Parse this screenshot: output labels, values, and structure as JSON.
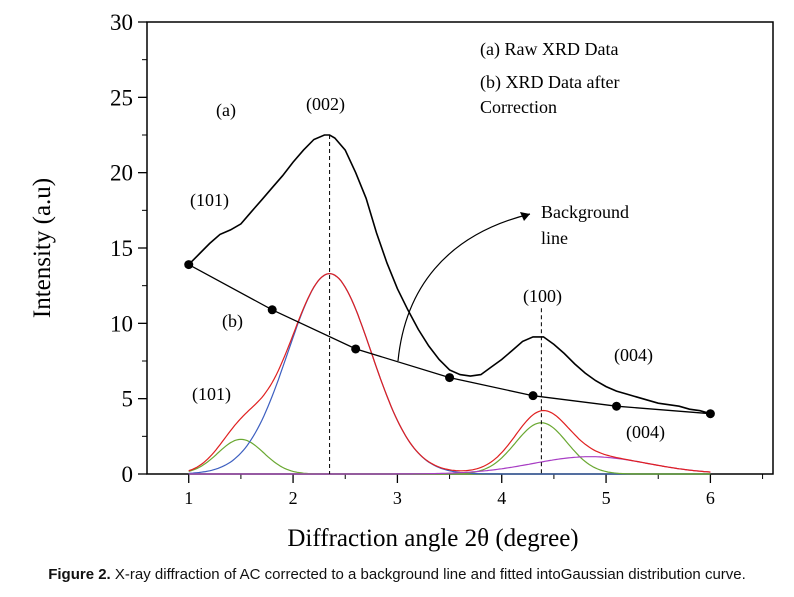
{
  "chart_data": {
    "type": "line",
    "xlabel": "Diffraction angle 2θ (degree)",
    "ylabel": "Intensity (a.u)",
    "xlim": [
      0.6,
      6.6
    ],
    "ylim": [
      0,
      30
    ],
    "x_ticks": [
      1,
      2,
      3,
      4,
      5,
      6
    ],
    "y_ticks": [
      0,
      5,
      10,
      15,
      20,
      25,
      30
    ],
    "legend": [
      "(a)  Raw XRD Data",
      "(b)   XRD Data after",
      "Correction"
    ],
    "raw_curve": {
      "name": "(a) Raw XRD Data",
      "color": "#000000",
      "x": [
        1.0,
        1.1,
        1.2,
        1.3,
        1.4,
        1.5,
        1.6,
        1.7,
        1.8,
        1.9,
        2.0,
        2.1,
        2.2,
        2.3,
        2.35,
        2.4,
        2.5,
        2.6,
        2.7,
        2.8,
        2.9,
        3.0,
        3.1,
        3.2,
        3.3,
        3.4,
        3.5,
        3.6,
        3.7,
        3.8,
        3.9,
        4.0,
        4.1,
        4.2,
        4.3,
        4.4,
        4.5,
        4.6,
        4.7,
        4.8,
        4.9,
        5.0,
        5.1,
        5.2,
        5.3,
        5.4,
        5.5,
        5.6,
        5.7,
        5.8,
        5.9,
        6.0
      ],
      "y": [
        13.9,
        14.6,
        15.3,
        15.9,
        16.2,
        16.6,
        17.4,
        18.2,
        19.0,
        19.8,
        20.7,
        21.5,
        22.2,
        22.5,
        22.5,
        22.3,
        21.5,
        20.0,
        18.3,
        16.0,
        14.0,
        12.3,
        10.9,
        9.6,
        8.5,
        7.6,
        6.9,
        6.6,
        6.5,
        6.6,
        7.1,
        7.6,
        8.2,
        8.8,
        9.1,
        9.1,
        8.6,
        8.0,
        7.3,
        6.7,
        6.2,
        5.8,
        5.5,
        5.3,
        5.1,
        4.9,
        4.7,
        4.6,
        4.5,
        4.3,
        4.2,
        4.0
      ]
    },
    "background_line": {
      "name": "Background line",
      "x": [
        1.0,
        1.8,
        2.6,
        3.5,
        4.3,
        5.1,
        6.0
      ],
      "y": [
        13.9,
        10.9,
        8.3,
        6.4,
        5.2,
        4.5,
        4.0
      ]
    },
    "fitted_curves": [
      {
        "name": "fit-101",
        "color": "#6aa832",
        "center": 1.5,
        "amplitude": 2.3,
        "sigma": 0.22
      },
      {
        "name": "fit-002",
        "color": "#3d5fc0",
        "center": 2.35,
        "amplitude": 13.3,
        "sigma": 0.4
      },
      {
        "name": "fit-100",
        "color": "#6aa832",
        "center": 4.38,
        "amplitude": 3.4,
        "sigma": 0.25
      },
      {
        "name": "fit-004",
        "color": "#a83ec4",
        "center": 4.85,
        "amplitude": 1.15,
        "sigma": 0.55
      }
    ],
    "envelope_color": "#e02020",
    "peak_markers": [
      2.35,
      4.38
    ],
    "annotations": [
      "(a)",
      "(002)",
      "(101)",
      "(b)",
      "(101)",
      "(100)",
      "(004)",
      "(004)",
      "Background",
      "line"
    ]
  },
  "figure_caption": {
    "label": "Figure 2.",
    "text": " X-ray diffraction of AC corrected to a background line and fitted intoGaussian distribution curve."
  }
}
